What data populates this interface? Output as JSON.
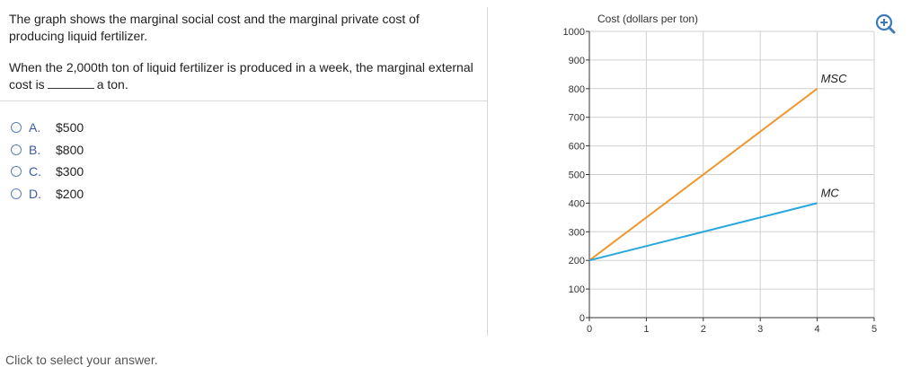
{
  "question": {
    "line1": "The graph shows the marginal social cost and the marginal private cost of producing liquid fertilizer.",
    "line2_before": "When the 2,000th ton of liquid fertilizer is produced in a week, the marginal external cost is",
    "line2_after": "a ton."
  },
  "choices": [
    {
      "letter": "A.",
      "value": "$500"
    },
    {
      "letter": "B.",
      "value": "$800"
    },
    {
      "letter": "C.",
      "value": "$300"
    },
    {
      "letter": "D.",
      "value": "$200"
    }
  ],
  "footer": {
    "hint": "Click to select your answer."
  },
  "zoom": {
    "icon": "zoom-in-icon"
  },
  "colors": {
    "msc": "#f0962a",
    "mc": "#2aa6de",
    "accent": "#3a5aa8",
    "grid": "#d0d0d0"
  },
  "chart_data": {
    "type": "line",
    "title": "",
    "ylabel": "Cost (dollars per ton)",
    "xlabel": "",
    "xlim": [
      0,
      5
    ],
    "ylim": [
      0,
      1000
    ],
    "x_ticks": [
      0,
      1,
      2,
      3,
      4,
      5
    ],
    "y_ticks": [
      0,
      100,
      200,
      300,
      400,
      500,
      600,
      700,
      800,
      900,
      1000
    ],
    "grid": true,
    "series": [
      {
        "name": "MSC",
        "label": "MSC",
        "x": [
          0,
          4
        ],
        "y": [
          200,
          800
        ]
      },
      {
        "name": "MC",
        "label": "MC",
        "x": [
          0,
          4
        ],
        "y": [
          200,
          400
        ]
      }
    ]
  }
}
